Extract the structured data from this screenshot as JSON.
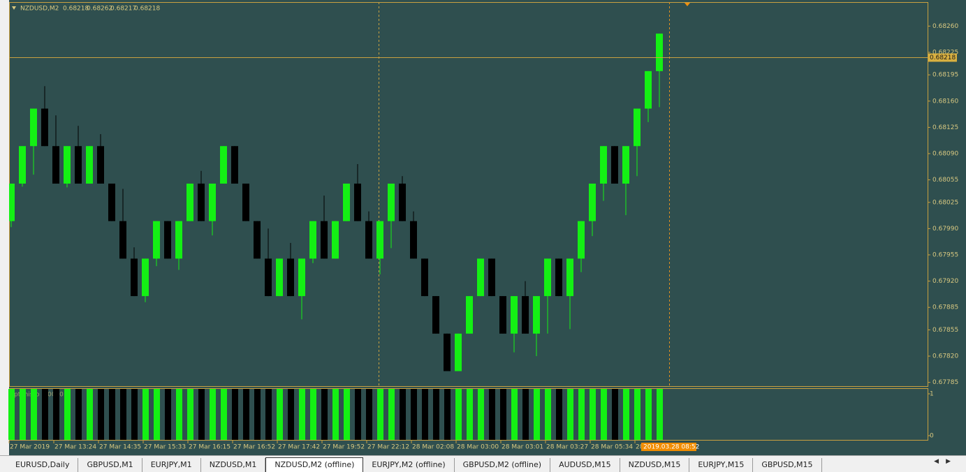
{
  "header": {
    "symbol": "NZDUSD,M2",
    "ohlc": [
      0.68218,
      0.68262,
      0.68217,
      0.68218
    ]
  },
  "chart": {
    "type": "candlestick",
    "ylim": [
      0.6778,
      0.68292
    ],
    "yticks": [
      {
        "value": 0.6826,
        "label": "0.68260"
      },
      0.68225,
      0.68195,
      {
        "value": 0.6816,
        "label": "0.68160"
      },
      0.68125,
      {
        "value": 0.6809,
        "label": "0.68090"
      },
      0.68055,
      0.68025,
      {
        "value": 0.6799,
        "label": "0.67990"
      },
      0.67955,
      {
        "value": 0.6792,
        "label": "0.67920"
      },
      0.67885,
      0.67855,
      {
        "value": 0.6782,
        "label": "0.67820"
      },
      0.67785
    ],
    "current_price": 0.68218,
    "up_color": "#14f014",
    "down_color": "#000000",
    "candles": [
      [
        0.68,
        0.6805,
        0.67992,
        0.6805
      ],
      [
        0.6805,
        0.681,
        0.68046,
        0.681
      ],
      [
        0.681,
        0.6815,
        0.68062,
        0.6815
      ],
      [
        0.6815,
        0.6818,
        0.681,
        0.681
      ],
      [
        0.681,
        0.68141,
        0.6805,
        0.6805
      ],
      [
        0.6805,
        0.681,
        0.68045,
        0.681
      ],
      [
        0.681,
        0.68127,
        0.6805,
        0.6805
      ],
      [
        0.6805,
        0.681,
        0.6805,
        0.681
      ],
      [
        0.681,
        0.68116,
        0.6805,
        0.6805
      ],
      [
        0.6805,
        0.6805,
        0.68,
        0.68
      ],
      [
        0.68,
        0.68043,
        0.6795,
        0.6795
      ],
      [
        0.6795,
        0.67965,
        0.679,
        0.679
      ],
      [
        0.679,
        0.6795,
        0.67892,
        0.6795
      ],
      [
        0.6795,
        0.68,
        0.6794,
        0.68
      ],
      [
        0.68,
        0.68,
        0.6795,
        0.6795
      ],
      [
        0.6795,
        0.68,
        0.67935,
        0.68
      ],
      [
        0.68,
        0.6805,
        0.68,
        0.6805
      ],
      [
        0.6805,
        0.68067,
        0.68,
        0.68
      ],
      [
        0.68,
        0.6805,
        0.67981,
        0.6805
      ],
      [
        0.6805,
        0.681,
        0.6805,
        0.681
      ],
      [
        0.681,
        0.681,
        0.6805,
        0.6805
      ],
      [
        0.6805,
        0.6805,
        0.68,
        0.68
      ],
      [
        0.68,
        0.68,
        0.6795,
        0.6795
      ],
      [
        0.6795,
        0.6799,
        0.679,
        0.679
      ],
      [
        0.679,
        0.6795,
        0.679,
        0.6795
      ],
      [
        0.6795,
        0.67971,
        0.679,
        0.679
      ],
      [
        0.679,
        0.6795,
        0.67869,
        0.6795
      ],
      [
        0.6795,
        0.68,
        0.67944,
        0.68
      ],
      [
        0.68,
        0.68034,
        0.6795,
        0.6795
      ],
      [
        0.6795,
        0.68,
        0.6795,
        0.68
      ],
      [
        0.68,
        0.6805,
        0.68,
        0.6805
      ],
      [
        0.6805,
        0.68076,
        0.68,
        0.68
      ],
      [
        0.68,
        0.68013,
        0.6795,
        0.6795
      ],
      [
        0.6795,
        0.68,
        0.67929,
        0.68
      ],
      [
        0.68,
        0.6805,
        0.67964,
        0.6805
      ],
      [
        0.6805,
        0.6806,
        0.68,
        0.68
      ],
      [
        0.68,
        0.68013,
        0.6795,
        0.6795
      ],
      [
        0.6795,
        0.6795,
        0.679,
        0.679
      ],
      [
        0.679,
        0.679,
        0.6785,
        0.6785
      ],
      [
        0.6785,
        0.6785,
        0.678,
        0.678
      ],
      [
        0.678,
        0.6785,
        0.678,
        0.6785
      ],
      [
        0.6785,
        0.679,
        0.6785,
        0.679
      ],
      [
        0.679,
        0.6795,
        0.679,
        0.6795
      ],
      [
        0.6795,
        0.6795,
        0.679,
        0.679
      ],
      [
        0.679,
        0.679,
        0.6785,
        0.6785
      ],
      [
        0.6785,
        0.679,
        0.67825,
        0.679
      ],
      [
        0.679,
        0.6792,
        0.6785,
        0.6785
      ],
      [
        0.6785,
        0.679,
        0.6782,
        0.679
      ],
      [
        0.679,
        0.6795,
        0.6785,
        0.6795
      ],
      [
        0.6795,
        0.6795,
        0.679,
        0.679
      ],
      [
        0.679,
        0.6795,
        0.67856,
        0.6795
      ],
      [
        0.6795,
        0.68,
        0.67932,
        0.68
      ],
      [
        0.68,
        0.6805,
        0.6798,
        0.6805
      ],
      [
        0.6805,
        0.681,
        0.68027,
        0.681
      ],
      [
        0.681,
        0.681,
        0.6805,
        0.6805
      ],
      [
        0.6805,
        0.681,
        0.68008,
        0.681
      ],
      [
        0.681,
        0.6815,
        0.6806,
        0.6815
      ],
      [
        0.6815,
        0.682,
        0.68132,
        0.682
      ],
      [
        0.682,
        0.6825,
        0.68152,
        0.6825
      ]
    ],
    "time_labels": [
      "27 Mar 2019",
      "27 Mar 13:24",
      "27 Mar 14:35",
      "27 Mar 15:33",
      "27 Mar 16:15",
      "27 Mar 16:52",
      "27 Mar 17:42",
      "27 Mar 19:52",
      "27 Mar 22:12",
      "28 Mar 02:08",
      "28 Mar 03:00",
      "28 Mar 03:01",
      "28 Mar 03:27",
      "28 Mar 05:34",
      "28"
    ],
    "cursor_time": "2019.03.28 08:52"
  },
  "indicator": {
    "label": "pti histo 1.0000",
    "ylim": [
      0,
      1
    ],
    "yticks": [
      1,
      0
    ],
    "values": [
      1,
      1,
      1,
      1,
      1,
      1,
      1,
      1,
      1,
      1,
      1,
      1,
      1,
      1,
      1,
      1,
      1,
      1,
      1,
      1,
      1,
      1,
      1,
      1,
      1,
      1,
      1,
      1,
      1,
      1,
      1,
      1,
      1,
      1,
      1,
      1,
      1,
      1,
      1,
      1,
      1,
      1,
      1,
      1,
      1,
      1,
      1,
      1,
      1,
      1,
      1,
      1,
      1,
      1,
      1,
      1,
      1,
      1,
      1
    ]
  },
  "tabs": [
    "EURUSD,Daily",
    "GBPUSD,M1",
    "EURJPY,M1",
    "NZDUSD,M1",
    "NZDUSD,M2 (offline)",
    "EURJPY,M2 (offline)",
    "GBPUSD,M2 (offline)",
    "AUDUSD,M15",
    "NZDUSD,M15",
    "EURJPY,M15",
    "GBPUSD,M15"
  ],
  "active_tab": 4
}
